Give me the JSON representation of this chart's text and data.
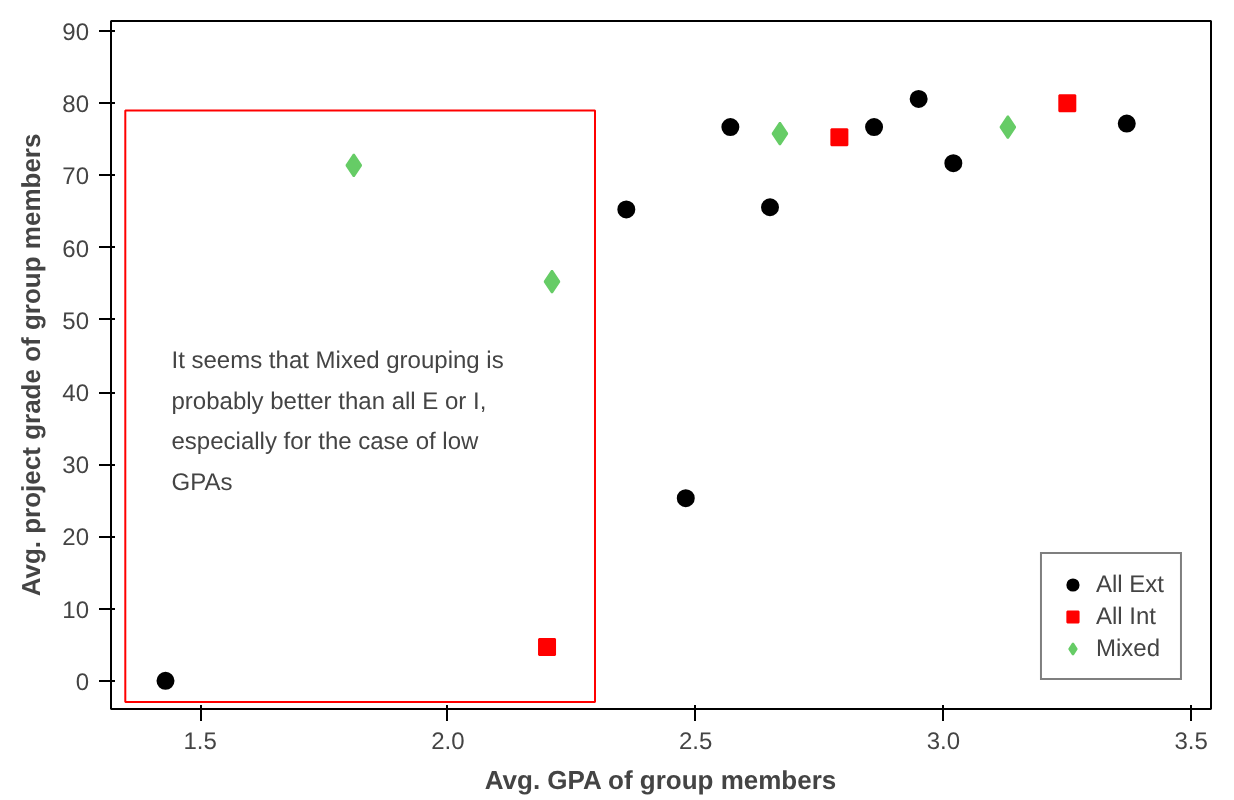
{
  "chart_data": {
    "type": "scatter",
    "xlabel": "Avg. GPA of group members",
    "ylabel": "Avg. project grade of group members",
    "xlim": [
      1.32,
      3.54
    ],
    "ylim": [
      -3.9,
      91.4
    ],
    "xticks": [
      {
        "value": 1.5,
        "label": "1.5"
      },
      {
        "value": 2.0,
        "label": "2.0"
      },
      {
        "value": 2.5,
        "label": "2.5"
      },
      {
        "value": 3.0,
        "label": "3.0"
      },
      {
        "value": 3.5,
        "label": "3.5"
      }
    ],
    "yticks": [
      0,
      10,
      20,
      30,
      40,
      50,
      60,
      70,
      80,
      90
    ],
    "grid": false,
    "legend": "bottom right",
    "series": [
      {
        "name": "All Ext",
        "color": "#000000",
        "marker": "circle",
        "x": [
          1.43,
          2.36,
          2.48,
          2.57,
          2.65,
          2.86,
          2.95,
          3.02,
          3.37
        ],
        "values": [
          0,
          65.3,
          25.3,
          76.7,
          65.6,
          76.7,
          80.6,
          71.7,
          77.2
        ]
      },
      {
        "name": "All Int",
        "color": "#ff0000",
        "marker": "square",
        "x": [
          2.2,
          2.79,
          3.25
        ],
        "values": [
          4.7,
          75.3,
          80
        ]
      },
      {
        "name": "Mixed",
        "color": "#66cc66",
        "marker": "diamond",
        "x": [
          1.81,
          2.21,
          2.67,
          3.13
        ],
        "values": [
          71.4,
          55.3,
          75.8,
          76.7
        ]
      }
    ],
    "annotations": [
      "It seems that Mixed grouping is\nprobably better than all E or I,\nespecially for the case of low\nGPAs"
    ]
  }
}
